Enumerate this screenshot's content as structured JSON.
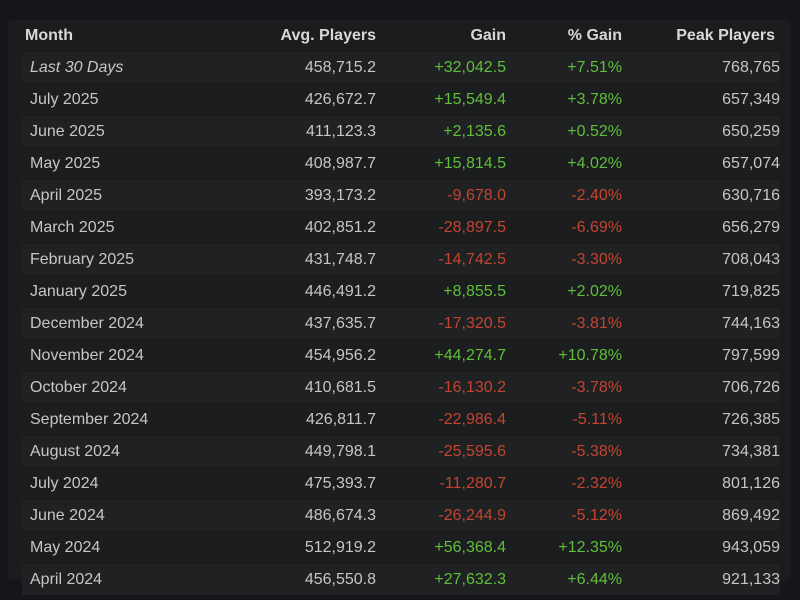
{
  "table": {
    "headers": {
      "month": "Month",
      "avg": "Avg. Players",
      "gain": "Gain",
      "pct": "% Gain",
      "peak": "Peak Players"
    },
    "colors": {
      "positive": "#5fbf3a",
      "negative": "#c2452f"
    },
    "rows": [
      {
        "month": "Last 30 Days",
        "avg": "458,715.2",
        "gain": "+32,042.5",
        "pct": "+7.51%",
        "peak": "768,765"
      },
      {
        "month": "July 2025",
        "avg": "426,672.7",
        "gain": "+15,549.4",
        "pct": "+3.78%",
        "peak": "657,349"
      },
      {
        "month": "June 2025",
        "avg": "411,123.3",
        "gain": "+2,135.6",
        "pct": "+0.52%",
        "peak": "650,259"
      },
      {
        "month": "May 2025",
        "avg": "408,987.7",
        "gain": "+15,814.5",
        "pct": "+4.02%",
        "peak": "657,074"
      },
      {
        "month": "April 2025",
        "avg": "393,173.2",
        "gain": "-9,678.0",
        "pct": "-2.40%",
        "peak": "630,716"
      },
      {
        "month": "March 2025",
        "avg": "402,851.2",
        "gain": "-28,897.5",
        "pct": "-6.69%",
        "peak": "656,279"
      },
      {
        "month": "February 2025",
        "avg": "431,748.7",
        "gain": "-14,742.5",
        "pct": "-3.30%",
        "peak": "708,043"
      },
      {
        "month": "January 2025",
        "avg": "446,491.2",
        "gain": "+8,855.5",
        "pct": "+2.02%",
        "peak": "719,825"
      },
      {
        "month": "December 2024",
        "avg": "437,635.7",
        "gain": "-17,320.5",
        "pct": "-3.81%",
        "peak": "744,163"
      },
      {
        "month": "November 2024",
        "avg": "454,956.2",
        "gain": "+44,274.7",
        "pct": "+10.78%",
        "peak": "797,599"
      },
      {
        "month": "October 2024",
        "avg": "410,681.5",
        "gain": "-16,130.2",
        "pct": "-3.78%",
        "peak": "706,726"
      },
      {
        "month": "September 2024",
        "avg": "426,811.7",
        "gain": "-22,986.4",
        "pct": "-5.11%",
        "peak": "726,385"
      },
      {
        "month": "August 2024",
        "avg": "449,798.1",
        "gain": "-25,595.6",
        "pct": "-5.38%",
        "peak": "734,381"
      },
      {
        "month": "July 2024",
        "avg": "475,393.7",
        "gain": "-11,280.7",
        "pct": "-2.32%",
        "peak": "801,126"
      },
      {
        "month": "June 2024",
        "avg": "486,674.3",
        "gain": "-26,244.9",
        "pct": "-5.12%",
        "peak": "869,492"
      },
      {
        "month": "May 2024",
        "avg": "512,919.2",
        "gain": "+56,368.4",
        "pct": "+12.35%",
        "peak": "943,059"
      },
      {
        "month": "April 2024",
        "avg": "456,550.8",
        "gain": "+27,632.3",
        "pct": "+6.44%",
        "peak": "921,133"
      }
    ]
  }
}
